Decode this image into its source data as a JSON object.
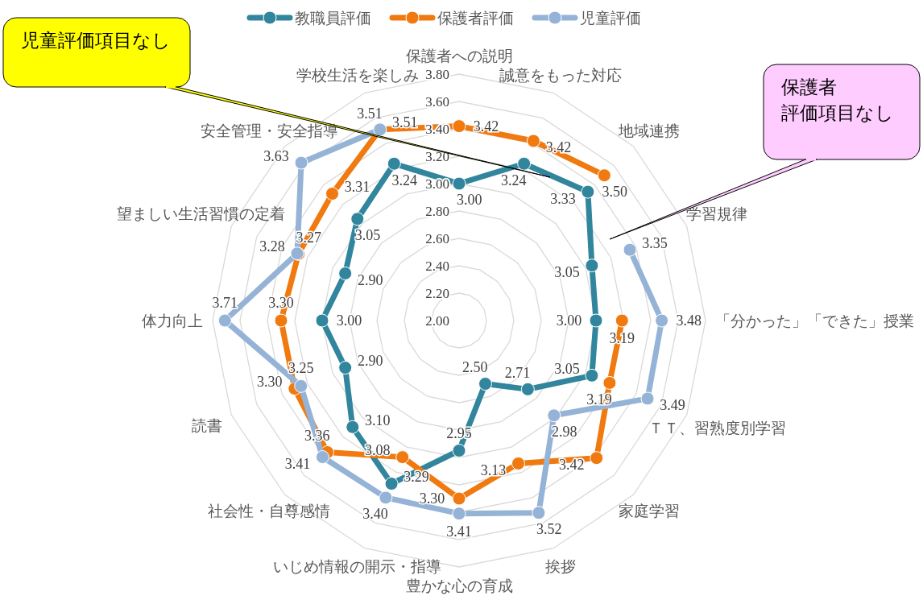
{
  "chart_data": {
    "type": "radar",
    "categories": [
      "保護者への説明",
      "誠意をもった対応",
      "地域連携",
      "学習規律",
      "「分かった」「できた」授業",
      "ＴＴ、習熟度別学習",
      "家庭学習",
      "挨拶",
      "豊かな心の育成",
      "いじめ情報の開示・指導",
      "社会性・自尊感情",
      "読書",
      "体力向上",
      "望ましい生活習慣の定着",
      "安全管理・安全指導",
      "学校生活を楽しみ"
    ],
    "series": [
      {
        "name": "教職員評価",
        "color": "#31859c",
        "values": [
          3.0,
          3.24,
          3.33,
          3.05,
          3.0,
          3.05,
          2.71,
          2.5,
          2.95,
          3.29,
          3.1,
          2.9,
          3.0,
          2.9,
          3.05,
          3.24
        ],
        "value_labels": [
          "3.00",
          "3.24",
          "3.33",
          "3.05",
          "3.00",
          "3.05",
          "2.71",
          "2.50",
          "2.95",
          "3.29",
          "3.10",
          "2.90",
          "3.00",
          "2.90",
          "3.05",
          "3.24"
        ]
      },
      {
        "name": "保護者評価",
        "color": "#f07a10",
        "values": [
          3.42,
          3.42,
          3.5,
          null,
          3.19,
          3.19,
          3.42,
          3.13,
          3.3,
          3.08,
          3.36,
          3.3,
          3.3,
          3.27,
          3.31,
          3.51
        ],
        "value_labels": [
          "3.42",
          "3.42",
          "3.50",
          null,
          "3.19",
          "3.19",
          "3.42",
          "3.13",
          "3.30",
          "3.08",
          "3.36",
          "3.30",
          "3.30",
          "3.27",
          "3.31",
          "3.51"
        ]
      },
      {
        "name": "児童評価",
        "color": "#95b3d7",
        "values": [
          null,
          null,
          null,
          3.35,
          3.48,
          3.49,
          2.98,
          3.52,
          3.41,
          3.4,
          3.41,
          3.25,
          3.71,
          3.28,
          3.63,
          3.51
        ],
        "value_labels": [
          null,
          null,
          null,
          "3.35",
          "3.48",
          "3.49",
          "2.98",
          "3.52",
          "3.41",
          "3.40",
          "3.41",
          "3.25",
          "3.71",
          "3.28",
          "3.63",
          "3.51"
        ]
      }
    ],
    "ylim": [
      2,
      3.8
    ],
    "yticks": [
      {
        "value": 2,
        "label": "2.00"
      },
      {
        "value": 2.2,
        "label": "2.20"
      },
      {
        "value": 2.4,
        "label": "2.40"
      },
      {
        "value": 2.6,
        "label": "2.60"
      },
      {
        "value": 2.8,
        "label": "2.80"
      },
      {
        "value": 3,
        "label": "3.00"
      },
      {
        "value": 3.2,
        "label": "3.20"
      },
      {
        "value": 3.4,
        "label": "3.40"
      },
      {
        "value": 3.6,
        "label": "3.60"
      },
      {
        "value": 3.8,
        "label": "3.80"
      }
    ],
    "grid": true,
    "legend": "top",
    "marker": "circle",
    "annotations": [
      "児童評価項目なし",
      "保護者評価項目なし"
    ]
  }
}
